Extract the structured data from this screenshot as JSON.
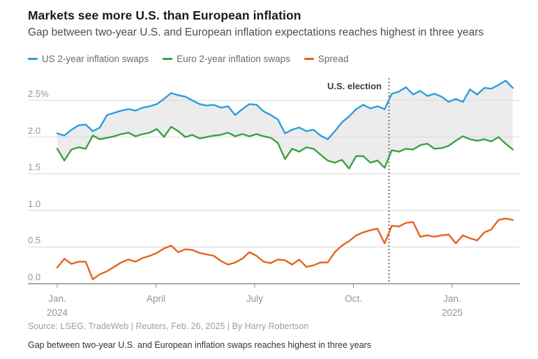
{
  "header": {
    "title": "Markets see more U.S. than European inflation",
    "subtitle": "Gap between two-year U.S. and European inflation expectations reaches highest in three years"
  },
  "annotation": {
    "label": "U.S. election"
  },
  "footer": {
    "source": "Source: LSEG, TradeWeb | Reuters, Feb. 26, 2025 | By Harry Robertson",
    "caption": "Gap between two-year U.S. and European inflation swaps reaches highest in three years"
  },
  "colors": {
    "us_line": "#2d9dde",
    "euro_line": "#3aa143",
    "spread_line": "#e8611c",
    "band": "#ececec",
    "gridline": "#d9d9d9",
    "axis": "#8c8c8c",
    "election_line": "#5a5a5a",
    "text_dark": "#1a1a1a",
    "text_gray": "#949494"
  },
  "chart_data": {
    "type": "line",
    "title": "Markets see more U.S. than European inflation",
    "subtitle": "Gap between two-year U.S. and European inflation expectations reaches highest in three years",
    "xlabel": "",
    "ylabel": "%",
    "ylim": [
      0,
      2.9
    ],
    "grid": true,
    "legend_position": "top-left",
    "x_unit": "months since Jan 1, 2024",
    "x_start_month": 0,
    "x_end_month": 13.84,
    "y_ticks": [
      {
        "label": "0.0",
        "value": 0.0
      },
      {
        "label": "0.5",
        "value": 0.5
      },
      {
        "label": "1.0",
        "value": 1.0
      },
      {
        "label": "1.5",
        "value": 1.5
      },
      {
        "label": "2.0",
        "value": 2.0
      },
      {
        "label": "2.5%",
        "value": 2.5
      }
    ],
    "x_ticks": [
      {
        "label": "Jan.",
        "sublabel": "2024",
        "month": 0
      },
      {
        "label": "April",
        "sublabel": "",
        "month": 3
      },
      {
        "label": "July",
        "sublabel": "",
        "month": 6
      },
      {
        "label": "Oct.",
        "sublabel": "",
        "month": 9
      },
      {
        "label": "Jan.",
        "sublabel": "2025",
        "month": 12
      }
    ],
    "band_between": [
      0,
      1
    ],
    "vline_annotations": [
      {
        "label": "U.S. election",
        "month": 10.08,
        "style": "dotted"
      }
    ],
    "series": [
      {
        "name": "US 2-year inflation swaps",
        "color": "#2d9dde",
        "values": [
          2.05,
          2.02,
          2.1,
          2.16,
          2.17,
          2.08,
          2.13,
          2.3,
          2.33,
          2.36,
          2.38,
          2.36,
          2.4,
          2.42,
          2.45,
          2.52,
          2.6,
          2.57,
          2.55,
          2.5,
          2.45,
          2.43,
          2.44,
          2.4,
          2.42,
          2.3,
          2.38,
          2.45,
          2.44,
          2.35,
          2.3,
          2.24,
          2.05,
          2.1,
          2.13,
          2.08,
          2.1,
          2.02,
          1.97,
          2.08,
          2.2,
          2.28,
          2.38,
          2.44,
          2.39,
          2.42,
          2.38,
          2.59,
          2.62,
          2.68,
          2.58,
          2.63,
          2.56,
          2.59,
          2.55,
          2.48,
          2.52,
          2.48,
          2.65,
          2.58,
          2.67,
          2.66,
          2.71,
          2.77,
          2.67
        ]
      },
      {
        "name": "Euro 2-year inflation swaps",
        "color": "#3aa143",
        "values": [
          1.84,
          1.68,
          1.83,
          1.86,
          1.84,
          2.02,
          1.97,
          1.99,
          2.01,
          2.04,
          2.06,
          2.01,
          2.04,
          2.06,
          2.11,
          2.0,
          2.14,
          2.08,
          2.0,
          2.03,
          1.98,
          2.0,
          2.02,
          2.03,
          2.06,
          2.01,
          2.04,
          2.01,
          2.04,
          2.01,
          1.99,
          1.92,
          1.7,
          1.84,
          1.8,
          1.86,
          1.84,
          1.76,
          1.68,
          1.65,
          1.69,
          1.57,
          1.74,
          1.74,
          1.65,
          1.68,
          1.58,
          1.82,
          1.8,
          1.84,
          1.83,
          1.89,
          1.91,
          1.84,
          1.85,
          1.88,
          1.95,
          2.01,
          1.97,
          1.95,
          1.97,
          1.94,
          2.0,
          1.91,
          1.83
        ]
      },
      {
        "name": "Spread",
        "color": "#e8611c",
        "values": [
          0.22,
          0.34,
          0.27,
          0.3,
          0.3,
          0.06,
          0.13,
          0.17,
          0.23,
          0.29,
          0.33,
          0.3,
          0.35,
          0.38,
          0.42,
          0.48,
          0.52,
          0.43,
          0.47,
          0.46,
          0.42,
          0.4,
          0.38,
          0.31,
          0.26,
          0.29,
          0.34,
          0.43,
          0.38,
          0.3,
          0.28,
          0.33,
          0.32,
          0.26,
          0.33,
          0.23,
          0.25,
          0.29,
          0.29,
          0.43,
          0.52,
          0.58,
          0.66,
          0.7,
          0.73,
          0.75,
          0.55,
          0.79,
          0.78,
          0.83,
          0.84,
          0.64,
          0.66,
          0.64,
          0.66,
          0.67,
          0.55,
          0.66,
          0.62,
          0.59,
          0.7,
          0.74,
          0.87,
          0.89,
          0.87
        ]
      }
    ]
  }
}
